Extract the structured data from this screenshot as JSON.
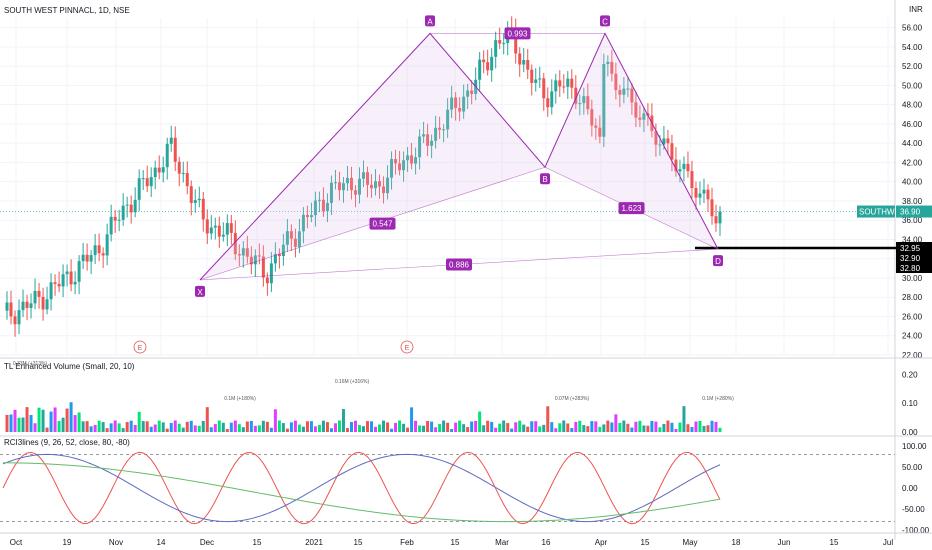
{
  "title": "SOUTH WEST PINNACL, 1D, NSE",
  "currency": "INR",
  "last_price": {
    "symbol": "SOUTHWEST",
    "value": "36.90",
    "color": "#26a69a"
  },
  "level_labels": [
    "32.95",
    "32.90",
    "32.80"
  ],
  "events": [
    "E",
    "E"
  ],
  "colors": {
    "up": "#26a69a",
    "down": "#ef5350",
    "harmonic": "#9c27b0",
    "harmonic_fill": "#e1bee7"
  },
  "chart_data": {
    "type": "candlestick",
    "price_axis": {
      "min": 22,
      "max": 57,
      "ticks": [
        "56.00",
        "54.00",
        "52.00",
        "50.00",
        "48.00",
        "46.00",
        "44.00",
        "42.00",
        "40.00",
        "38.00",
        "36.00",
        "34.00",
        "32.00",
        "30.00",
        "28.00",
        "26.00",
        "24.00",
        "22.00"
      ]
    },
    "x_axis_labels": [
      "Oct",
      "19",
      "Nov",
      "14",
      "Dec",
      "15",
      "2021",
      "15",
      "Feb",
      "15",
      "Mar",
      "16",
      "Apr",
      "15",
      "May",
      "18",
      "Jun",
      "15",
      "Jul"
    ],
    "harmonic": {
      "points": [
        {
          "name": "X",
          "value": 29.8
        },
        {
          "name": "A",
          "value": 55.4
        },
        {
          "name": "B",
          "value": 41.5
        },
        {
          "name": "C",
          "value": 55.4
        },
        {
          "name": "D",
          "value": 33.0
        }
      ],
      "ratios": [
        "0.993",
        "0.547",
        "1.623",
        "0.886"
      ]
    },
    "volume_pane": {
      "title": "TL Enhanced Volume (Small, 20, 10)",
      "ticks": [
        "0.20",
        "0.10",
        "0.00"
      ],
      "annotations": [
        "0.33M (+313%)",
        "0.1M (+180%)",
        "0.16M (+316%)",
        "0.07M (+283%)",
        "0.1M (+280%)"
      ]
    },
    "rci_pane": {
      "title": "RCI3lines (9, 26, 52, close, 80, -80)",
      "ticks": [
        "100.00",
        "50.00",
        "0.00",
        "-50.00",
        "-100.00"
      ],
      "levels": [
        80,
        -80
      ]
    }
  }
}
